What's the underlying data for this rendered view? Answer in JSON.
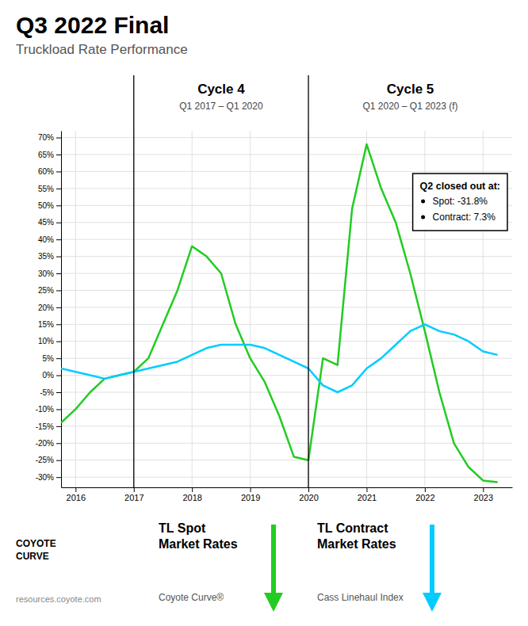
{
  "chart_data": {
    "type": "line",
    "title": "Q3 2022 Final",
    "subtitle": "Truckload Rate Performance",
    "x": [
      2015.75,
      2016.0,
      2016.25,
      2016.5,
      2016.75,
      2017.0,
      2017.25,
      2017.5,
      2017.75,
      2018.0,
      2018.25,
      2018.5,
      2018.75,
      2019.0,
      2019.25,
      2019.5,
      2019.75,
      2020.0,
      2020.25,
      2020.5,
      2020.75,
      2021.0,
      2021.25,
      2021.5,
      2021.75,
      2022.0,
      2022.25,
      2022.5,
      2022.75,
      2023.0,
      2023.25
    ],
    "series": [
      {
        "name": "TL Spot\nMarket Rates",
        "source": "Coyote Curve®",
        "color": "#22cc22",
        "values": [
          -14,
          -10,
          -5,
          -1,
          0,
          1,
          5,
          15,
          25,
          38,
          35,
          30,
          15,
          5,
          -2,
          -12,
          -24,
          -25,
          5,
          3,
          49,
          68,
          55,
          45,
          30,
          13,
          -5,
          -20,
          -27,
          -31,
          -31.5
        ]
      },
      {
        "name": "TL Contract\nMarket Rates",
        "source": "Cass Linehaul Index",
        "color": "#00ccff",
        "values": [
          2,
          1,
          0,
          -1,
          0,
          1,
          2,
          3,
          4,
          6,
          8,
          9,
          9,
          9,
          8,
          6,
          4,
          2,
          -3,
          -5,
          -3,
          2,
          5,
          9,
          13,
          15,
          13,
          12,
          10,
          7,
          6
        ]
      }
    ],
    "xlim": [
      2015.75,
      2023.5
    ],
    "xticks": [
      2016,
      2017,
      2018,
      2019,
      2020,
      2021,
      2022,
      2023
    ],
    "ylim": [
      -33,
      72
    ],
    "yticks": [
      {
        "value": -30,
        "label": "-30%"
      },
      {
        "value": -25,
        "label": "-25%"
      },
      {
        "value": -20,
        "label": "-20%"
      },
      {
        "value": -15,
        "label": "-15%"
      },
      {
        "value": -10,
        "label": "-10%"
      },
      {
        "value": -5,
        "label": "-5%"
      },
      {
        "value": 0,
        "label": "0%"
      },
      {
        "value": 5,
        "label": "5%"
      },
      {
        "value": 10,
        "label": "10%"
      },
      {
        "value": 15,
        "label": "15%"
      },
      {
        "value": 20,
        "label": "20%"
      },
      {
        "value": 25,
        "label": "25%"
      },
      {
        "value": 30,
        "label": "30%"
      },
      {
        "value": 35,
        "label": "35%"
      },
      {
        "value": 40,
        "label": "40%"
      },
      {
        "value": 45,
        "label": "45%"
      },
      {
        "value": 50,
        "label": "50%"
      },
      {
        "value": 55,
        "label": "55%"
      },
      {
        "value": 60,
        "label": "60%"
      },
      {
        "value": 65,
        "label": "65%"
      },
      {
        "value": 70,
        "label": "70%"
      }
    ],
    "grid": true,
    "annotations": {
      "cycles": [
        {
          "label": "Cycle 4",
          "period": "Q1 2017 – Q1 2020",
          "x": 2017.0
        },
        {
          "label": "Cycle 5",
          "period": "Q1 2020 – Q1 2023 (f)",
          "x": 2020.0
        }
      ],
      "callout": {
        "title": "Q2 closed out at:",
        "items": [
          "Spot: -31.8%",
          "Contract: 7.3%"
        ]
      },
      "brand": [
        "COYOTE",
        "CURVE"
      ],
      "url": "resources.coyote.com"
    }
  }
}
